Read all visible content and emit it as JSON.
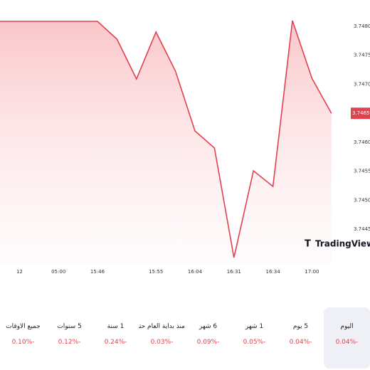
{
  "chart_data": {
    "type": "area",
    "color": "#e0424f",
    "categories": [
      null,
      "12",
      null,
      "05:00",
      null,
      "15:46",
      null,
      null,
      "15:55",
      null,
      "16:04",
      null,
      "16:31",
      null,
      "16:34",
      null,
      "17:00",
      null
    ],
    "values": [
      3.748086,
      3.748086,
      3.748086,
      3.748086,
      3.748086,
      3.748086,
      3.747779,
      3.747092,
      3.747902,
      3.747227,
      3.746196,
      3.745902,
      3.744012,
      3.745509,
      3.745239,
      3.748098,
      3.747104,
      3.7465
    ],
    "ylim": [
      3.743914,
      3.748454
    ],
    "yticks": [
      {
        "value": 3.748,
        "label": "3.748000"
      },
      {
        "value": 3.7475,
        "label": "3.747500"
      },
      {
        "value": 3.747,
        "label": "3.747000"
      },
      {
        "value": 3.746,
        "label": "3.746000"
      },
      {
        "value": 3.7455,
        "label": "3.745500"
      },
      {
        "value": 3.745,
        "label": "3.745000"
      },
      {
        "value": 3.7445,
        "label": "3.744500"
      }
    ],
    "last_price": {
      "value": 3.7465,
      "label": "3.746500"
    },
    "brand": "TradingView"
  },
  "tabs": [
    {
      "name": "اليوم",
      "change": "0.04%-",
      "selected": true
    },
    {
      "name": "5 يوم",
      "change": "0.04%-"
    },
    {
      "name": "1 شهر",
      "change": "0.05%-"
    },
    {
      "name": "6 شهر",
      "change": "0.09%-"
    },
    {
      "name": "منذ بداية العام حتى اليوم",
      "change": "0.03%-"
    },
    {
      "name": "1 سنة",
      "change": "0.24%-"
    },
    {
      "name": "5 سنوات",
      "change": "0.12%-"
    },
    {
      "name": "جميع الأوقات",
      "change": "0.10%-"
    }
  ]
}
